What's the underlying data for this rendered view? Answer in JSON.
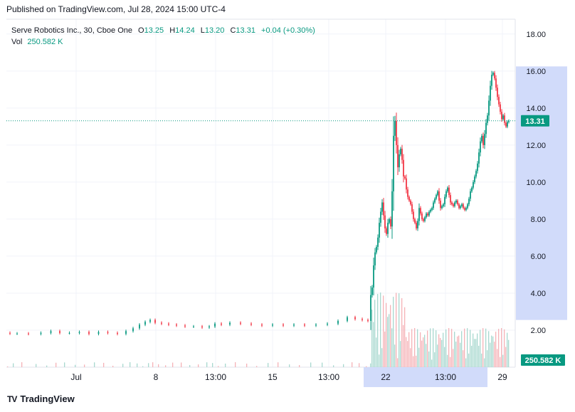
{
  "header": {
    "published": "Published on TradingView.com, Jul 28, 2024 15:00 UTC-4"
  },
  "legend": {
    "symbol": "Serve Robotics Inc., 30, Cboe One",
    "o_label": "O",
    "o_value": "13.25",
    "h_label": "H",
    "h_value": "14.24",
    "l_label": "L",
    "l_value": "13.20",
    "c_label": "C",
    "c_value": "13.31",
    "change": "+0.04 (+0.30%)",
    "vol_label": "Vol",
    "vol_value": "250.582 K"
  },
  "brand": {
    "name": "TradingView",
    "logo": "TV"
  },
  "colors": {
    "up": "#089981",
    "down": "#f23645",
    "volume_up": "#a8d8cf",
    "volume_down": "#f5b2b7",
    "highlight": "#d1dbfa",
    "text": "#131722"
  },
  "chart_data": {
    "type": "candlestick",
    "symbol": "Serve Robotics Inc.",
    "interval": "30",
    "exchange": "Cboe One",
    "ylim": [
      0,
      18.8
    ],
    "y_ticks": [
      "18.00",
      "16.00",
      "14.00",
      "12.00",
      "10.00",
      "8.00",
      "6.00",
      "4.00",
      "2.00"
    ],
    "x_tick_labels": [
      "Jul",
      "8",
      "13:00",
      "15",
      "13:00",
      "22",
      "13:00",
      "29"
    ],
    "highlight_range": {
      "start_label": "22",
      "end_label": "29"
    },
    "last_price": "13.31",
    "last_volume": "250.582 K",
    "price_path": [
      [
        0,
        1.85
      ],
      [
        8,
        1.82
      ],
      [
        20,
        1.82
      ],
      [
        40,
        1.8
      ],
      [
        55,
        1.85
      ],
      [
        68,
        1.95
      ],
      [
        80,
        1.85
      ],
      [
        95,
        1.85
      ],
      [
        108,
        1.9
      ],
      [
        122,
        1.8
      ],
      [
        135,
        1.9
      ],
      [
        148,
        1.85
      ],
      [
        162,
        1.8
      ],
      [
        172,
        1.95
      ],
      [
        182,
        2.1
      ],
      [
        190,
        2.3
      ],
      [
        198,
        2.45
      ],
      [
        204,
        2.55
      ],
      [
        212,
        2.4
      ],
      [
        222,
        2.35
      ],
      [
        232,
        2.3
      ],
      [
        244,
        2.25
      ],
      [
        256,
        2.2
      ],
      [
        268,
        2.2
      ],
      [
        280,
        2.15
      ],
      [
        288,
        2.2
      ],
      [
        296,
        2.35
      ],
      [
        306,
        2.3
      ],
      [
        320,
        2.4
      ],
      [
        336,
        2.35
      ],
      [
        350,
        2.3
      ],
      [
        366,
        2.25
      ],
      [
        380,
        2.3
      ],
      [
        396,
        2.25
      ],
      [
        410,
        2.3
      ],
      [
        426,
        2.25
      ],
      [
        442,
        2.3
      ],
      [
        458,
        2.35
      ],
      [
        472,
        2.5
      ],
      [
        484,
        2.7
      ],
      [
        494,
        2.6
      ],
      [
        504,
        2.55
      ],
      [
        510,
        2.5
      ],
      [
        512,
        3.9
      ],
      [
        514,
        4.3
      ],
      [
        516,
        5.5
      ],
      [
        518,
        6.2
      ],
      [
        520,
        6.5
      ],
      [
        522,
        7.0
      ],
      [
        524,
        7.8
      ],
      [
        526,
        8.4
      ],
      [
        528,
        8.9
      ],
      [
        530,
        8.2
      ],
      [
        532,
        7.5
      ],
      [
        534,
        7.2
      ],
      [
        536,
        7.8
      ],
      [
        538,
        8.0
      ],
      [
        540,
        7.6
      ],
      [
        542,
        9.5
      ],
      [
        544,
        12.5
      ],
      [
        546,
        13.3
      ],
      [
        548,
        12.0
      ],
      [
        550,
        10.8
      ],
      [
        552,
        11.5
      ],
      [
        554,
        11.8
      ],
      [
        556,
        11.2
      ],
      [
        558,
        10.3
      ],
      [
        560,
        10.2
      ],
      [
        562,
        9.6
      ],
      [
        564,
        9.2
      ],
      [
        566,
        9.0
      ],
      [
        568,
        8.8
      ],
      [
        570,
        8.4
      ],
      [
        572,
        8.0
      ],
      [
        574,
        7.8
      ],
      [
        576,
        7.5
      ],
      [
        578,
        7.9
      ],
      [
        580,
        8.6
      ],
      [
        582,
        8.3
      ],
      [
        584,
        8.0
      ],
      [
        586,
        7.9
      ],
      [
        588,
        8.1
      ],
      [
        590,
        8.3
      ],
      [
        592,
        8.2
      ],
      [
        594,
        8.4
      ],
      [
        596,
        8.5
      ],
      [
        598,
        8.6
      ],
      [
        600,
        8.9
      ],
      [
        602,
        9.1
      ],
      [
        604,
        9.3
      ],
      [
        606,
        9.5
      ],
      [
        608,
        9.0
      ],
      [
        610,
        8.6
      ],
      [
        612,
        8.7
      ],
      [
        614,
        8.8
      ],
      [
        616,
        9.2
      ],
      [
        618,
        9.5
      ],
      [
        620,
        9.7
      ],
      [
        622,
        9.3
      ],
      [
        624,
        8.9
      ],
      [
        626,
        8.8
      ],
      [
        628,
        8.7
      ],
      [
        630,
        8.9
      ],
      [
        632,
        9.0
      ],
      [
        634,
        8.8
      ],
      [
        636,
        8.6
      ],
      [
        638,
        8.7
      ],
      [
        640,
        8.8
      ],
      [
        642,
        8.6
      ],
      [
        644,
        8.5
      ],
      [
        646,
        8.6
      ],
      [
        648,
        8.8
      ],
      [
        650,
        9.1
      ],
      [
        652,
        9.5
      ],
      [
        654,
        9.7
      ],
      [
        656,
        10.0
      ],
      [
        658,
        10.3
      ],
      [
        660,
        10.6
      ],
      [
        662,
        11.0
      ],
      [
        664,
        11.6
      ],
      [
        666,
        12.2
      ],
      [
        668,
        12.5
      ],
      [
        670,
        12.0
      ],
      [
        672,
        12.6
      ],
      [
        674,
        13.2
      ],
      [
        676,
        13.6
      ],
      [
        678,
        14.4
      ],
      [
        680,
        15.2
      ],
      [
        682,
        15.8
      ],
      [
        684,
        15.9
      ],
      [
        686,
        15.6
      ],
      [
        688,
        15.1
      ],
      [
        690,
        14.6
      ],
      [
        692,
        14.2
      ],
      [
        694,
        13.8
      ],
      [
        696,
        13.4
      ],
      [
        698,
        13.6
      ],
      [
        700,
        13.2
      ],
      [
        702,
        13.0
      ],
      [
        704,
        13.25
      ],
      [
        706,
        13.31
      ]
    ]
  }
}
